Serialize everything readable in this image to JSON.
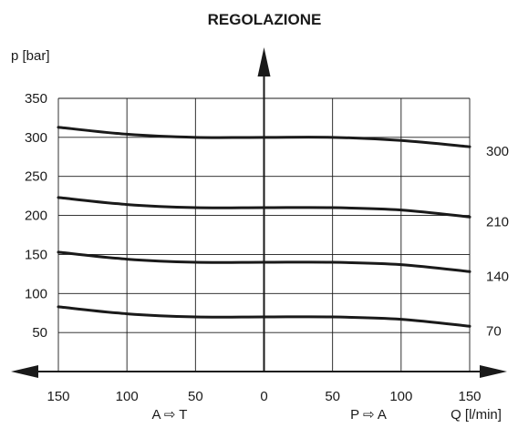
{
  "chart_data": {
    "type": "line",
    "title": "REGOLAZIONE",
    "ylabel": "p [bar]",
    "xlabel": "Q [l/min]",
    "direction_left": "A ⇨ T",
    "direction_right": "P ⇨ A",
    "xlim": [
      -150,
      150
    ],
    "ylim": [
      0,
      350
    ],
    "x_tick_values": [
      -150,
      -100,
      -50,
      0,
      50,
      100,
      150
    ],
    "x_tick_labels": [
      "150",
      "100",
      "50",
      "0",
      "50",
      "100",
      "150"
    ],
    "y_tick_values": [
      50,
      100,
      150,
      200,
      250,
      300,
      350
    ],
    "y_tick_labels": [
      "50",
      "100",
      "150",
      "200",
      "250",
      "300",
      "350"
    ],
    "grid": true,
    "series": [
      {
        "name": "300",
        "x": [
          -150,
          -100,
          -50,
          0,
          50,
          100,
          150
        ],
        "y": [
          313,
          304,
          300,
          300,
          300,
          296,
          288
        ]
      },
      {
        "name": "210",
        "x": [
          -150,
          -100,
          -50,
          0,
          50,
          100,
          150
        ],
        "y": [
          223,
          214,
          210,
          210,
          210,
          207,
          198
        ]
      },
      {
        "name": "140",
        "x": [
          -150,
          -100,
          -50,
          0,
          50,
          100,
          150
        ],
        "y": [
          153,
          144,
          140,
          140,
          140,
          137,
          128
        ]
      },
      {
        "name": "70",
        "x": [
          -150,
          -100,
          -50,
          0,
          50,
          100,
          150
        ],
        "y": [
          83,
          74,
          70,
          70,
          70,
          67,
          58
        ]
      }
    ]
  }
}
